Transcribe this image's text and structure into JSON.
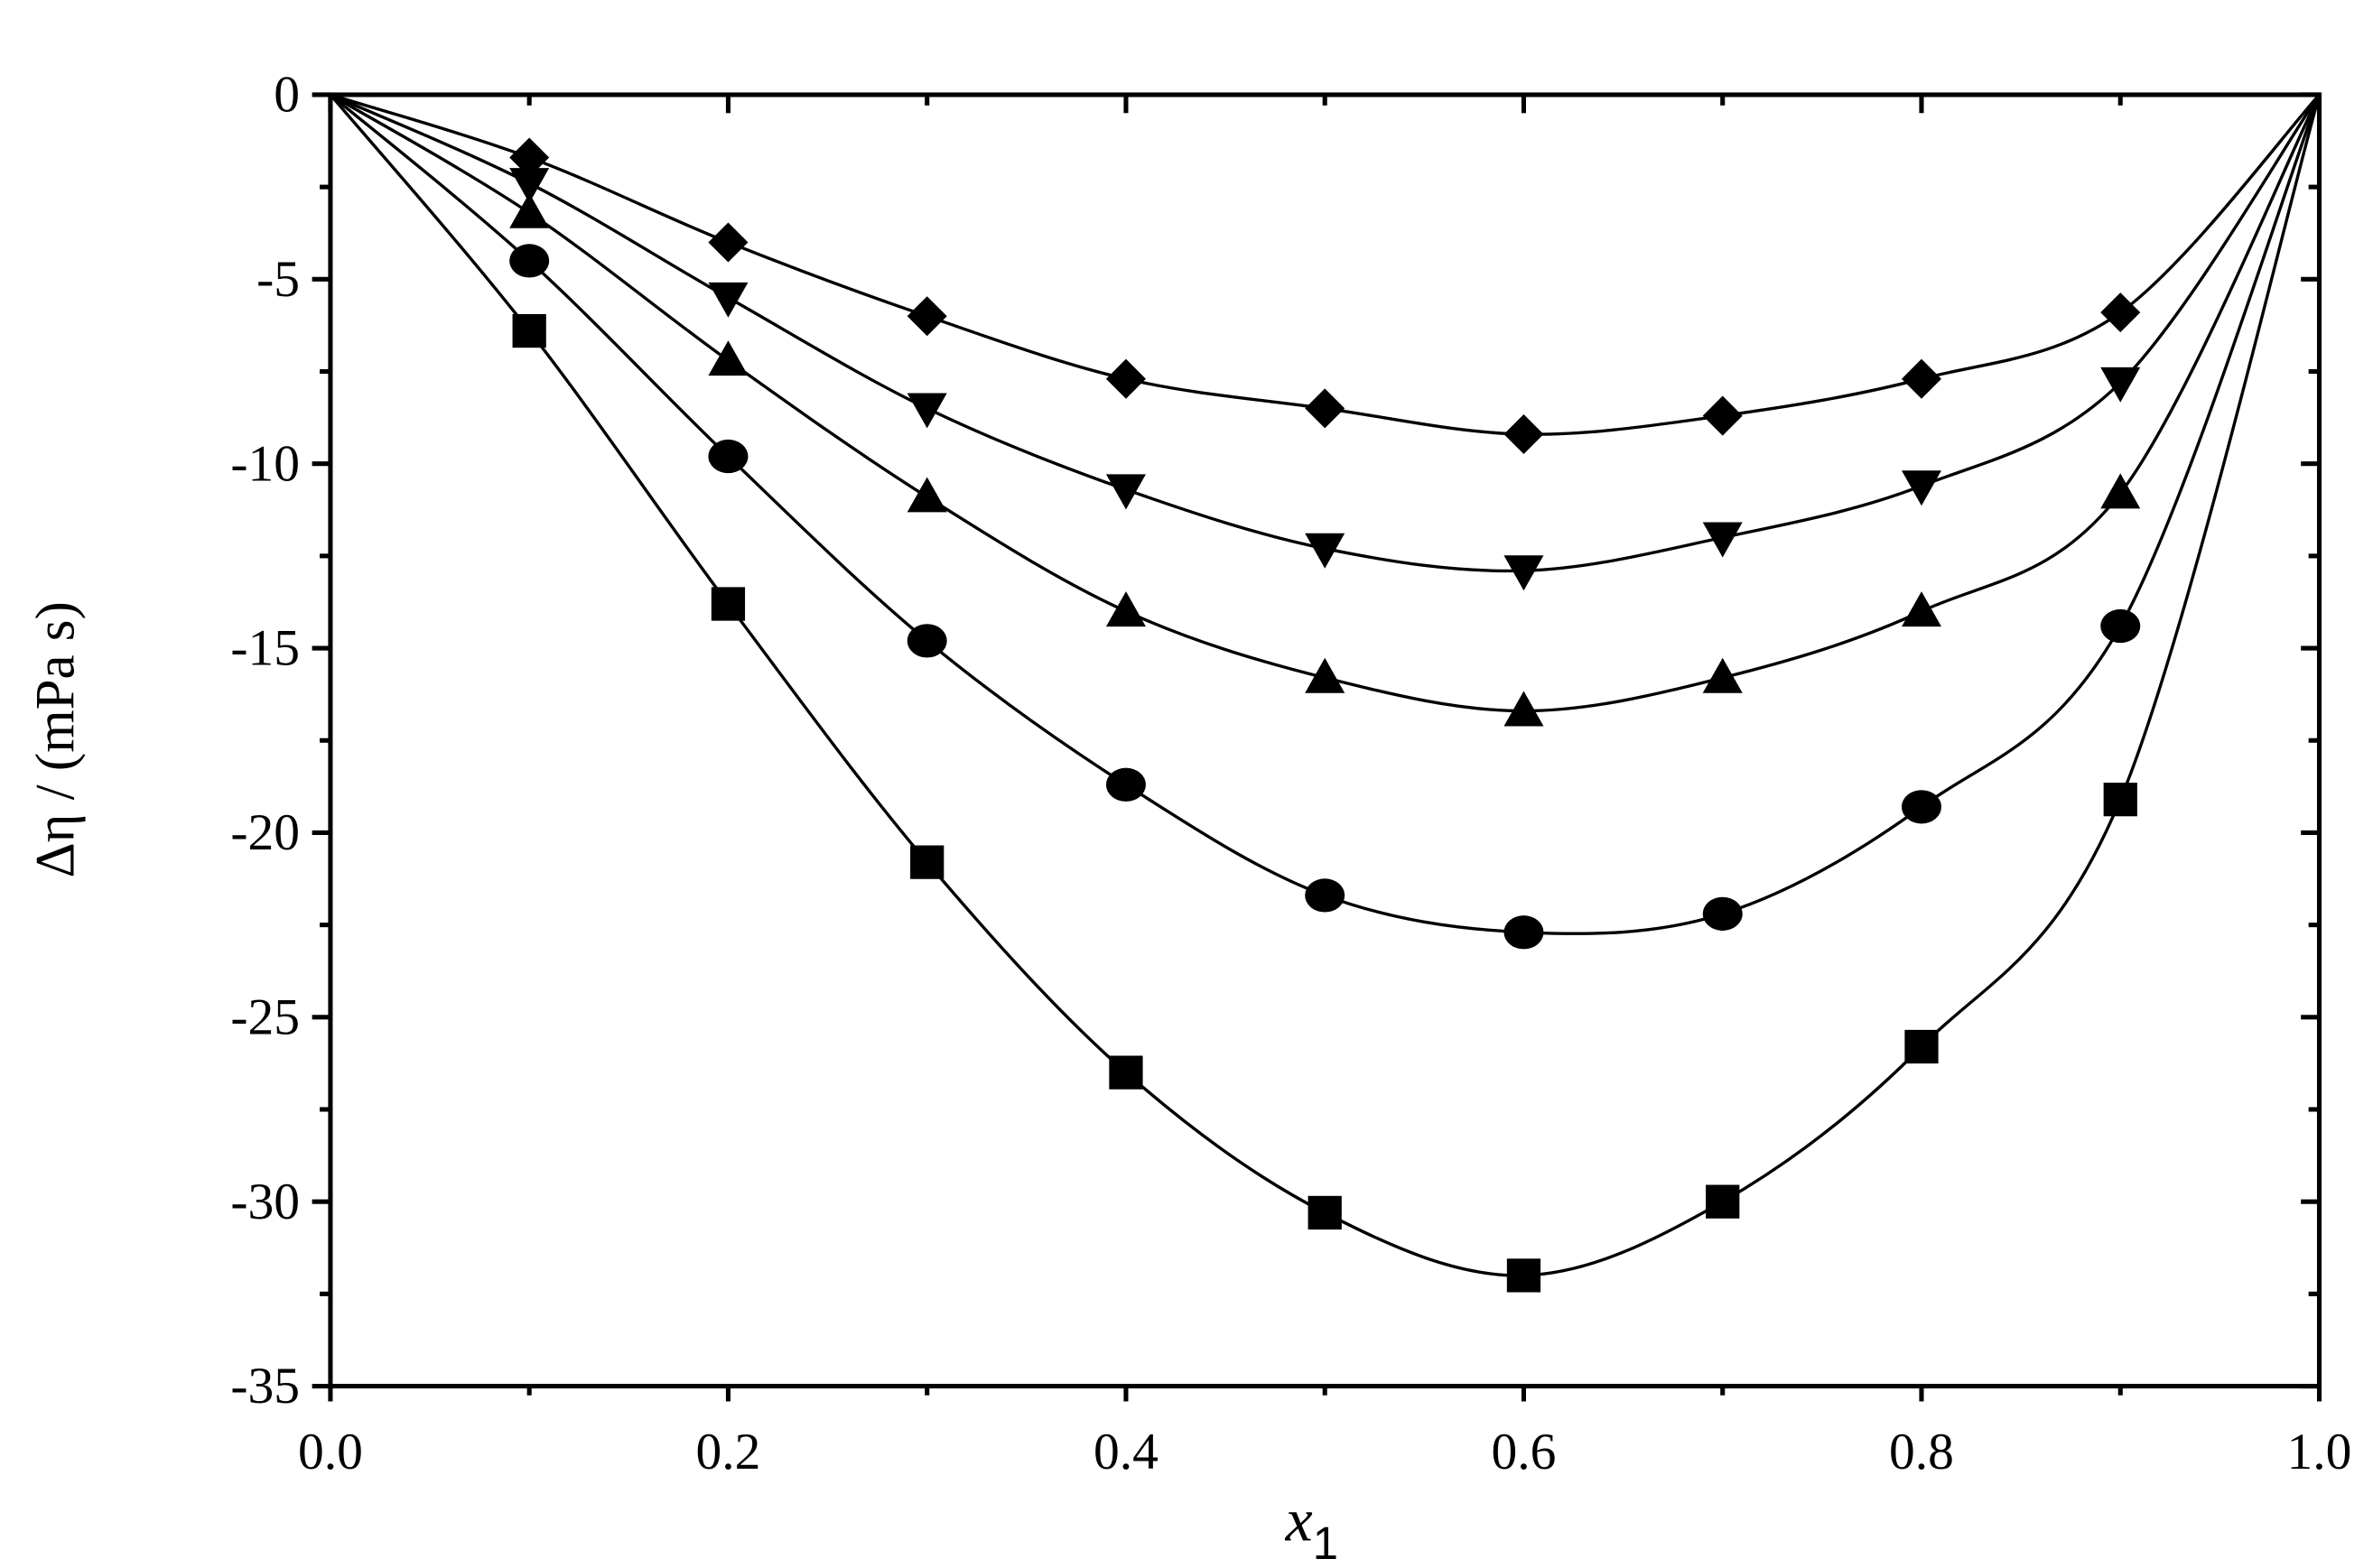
{
  "chart_data": {
    "type": "line",
    "xlabel": "x",
    "xlabel_subscript": "1",
    "ylabel": "Δη / (mPa s)",
    "x": [
      0,
      0.1,
      0.2,
      0.3,
      0.4,
      0.5,
      0.6,
      0.7,
      0.8,
      0.9,
      1.0
    ],
    "series": [
      {
        "marker": "square",
        "color": "#000000",
        "values": [
          0,
          -6.4,
          -13.8,
          -20.8,
          -26.5,
          -30.3,
          -32.0,
          -30.0,
          -25.8,
          -19.1,
          0
        ]
      },
      {
        "marker": "circle",
        "color": "#000000",
        "values": [
          0,
          -4.5,
          -9.8,
          -14.8,
          -18.7,
          -21.7,
          -22.7,
          -22.2,
          -19.3,
          -14.4,
          0
        ]
      },
      {
        "marker": "triangle-up",
        "color": "#000000",
        "values": [
          0,
          -3.2,
          -7.2,
          -10.9,
          -14.0,
          -15.8,
          -16.7,
          -15.8,
          -14.0,
          -10.8,
          0
        ]
      },
      {
        "marker": "triangle-down",
        "color": "#000000",
        "values": [
          0,
          -2.4,
          -5.5,
          -8.5,
          -10.7,
          -12.3,
          -12.9,
          -12.0,
          -10.6,
          -7.8,
          0
        ]
      },
      {
        "marker": "diamond",
        "color": "#000000",
        "values": [
          0,
          -1.7,
          -4.0,
          -6.0,
          -7.7,
          -8.5,
          -9.2,
          -8.7,
          -7.7,
          -5.9,
          0
        ]
      }
    ],
    "xlim": [
      0,
      1.0
    ],
    "ylim": [
      -35,
      0
    ],
    "xticks": [
      {
        "value": 0,
        "label": "0.0"
      },
      {
        "value": 0.2,
        "label": "0.2"
      },
      {
        "value": 0.4,
        "label": "0.4"
      },
      {
        "value": 0.6,
        "label": "0.6"
      },
      {
        "value": 0.8,
        "label": "0.8"
      },
      {
        "value": 1.0,
        "label": "1.0"
      }
    ],
    "yticks": [
      0,
      -5,
      -10,
      -15,
      -20,
      -25,
      -30,
      -35
    ],
    "grid": false
  }
}
